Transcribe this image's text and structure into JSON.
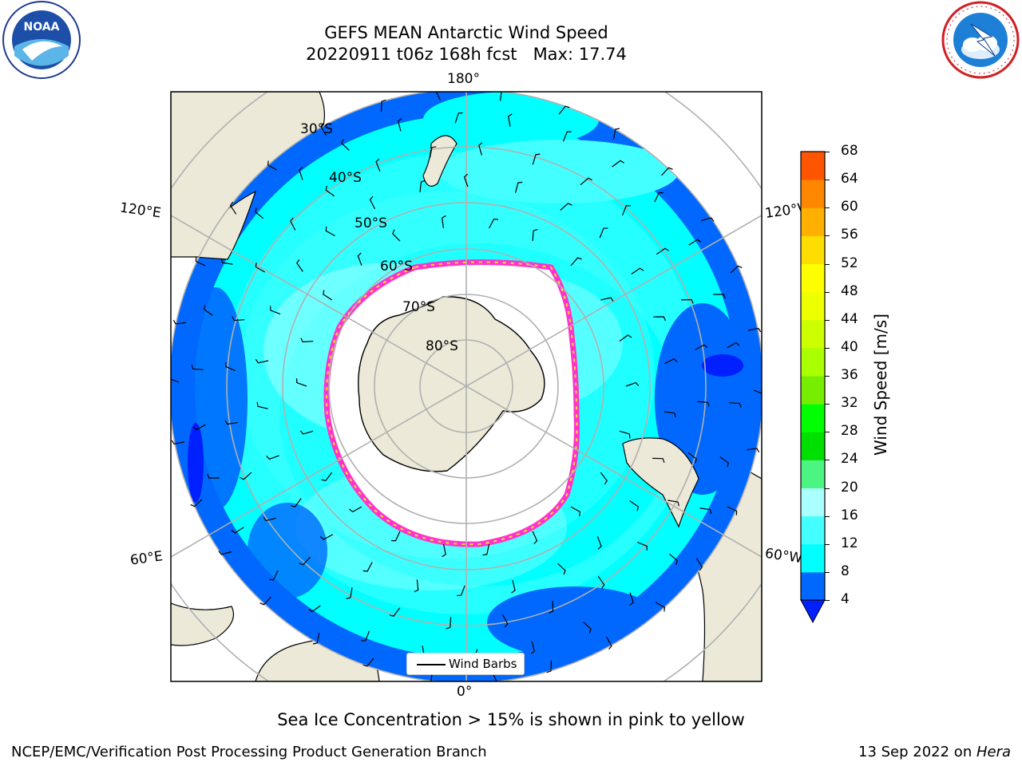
{
  "title": {
    "line1": "GEFS MEAN Antarctic Wind Speed",
    "line2": "20220911 t06z 168h fcst   Max: 17.74"
  },
  "logos": {
    "left": {
      "text": "NOAA",
      "ring_text": "NATIONAL OCEANIC AND ATMOSPHERIC ADMINISTRATION",
      "icon": "noaa-logo"
    },
    "right": {
      "text": "NATIONAL WEATHER SERVICE",
      "icon": "nws-logo"
    }
  },
  "map": {
    "longitude_labels": {
      "top": "180°",
      "bottom": "0°",
      "upper_left": "120°E",
      "upper_right": "120°W",
      "lower_left": "60°E",
      "lower_right": "60°W"
    },
    "latitude_labels": [
      "30°S",
      "40°S",
      "50°S",
      "60°S",
      "70°S",
      "80°S"
    ],
    "legend_label": "Wind Barbs"
  },
  "colorbar": {
    "label": "Wind Speed [m/s]",
    "ticks": [
      "4",
      "8",
      "12",
      "16",
      "20",
      "24",
      "28",
      "32",
      "36",
      "40",
      "44",
      "48",
      "52",
      "56",
      "60",
      "64",
      "68"
    ],
    "colors": [
      "#0068ff",
      "#00ffff",
      "#44ffff",
      "#aaffff",
      "#4cf582",
      "#00e000",
      "#00ff00",
      "#77ee00",
      "#aaff00",
      "#ccff00",
      "#eeff00",
      "#ffff00",
      "#ffdd00",
      "#ffb000",
      "#ff8800",
      "#ff5500",
      "#ff2200",
      "#ff0000"
    ],
    "min_color": "#0020ff"
  },
  "notes": {
    "sea_ice": "Sea Ice Concentration > 15% is shown in pink to yellow"
  },
  "footer": {
    "left": "NCEP/EMC/Verification Post Processing Product Generation Branch",
    "right_date": "13 Sep 2022 on ",
    "right_host": "Hera"
  }
}
